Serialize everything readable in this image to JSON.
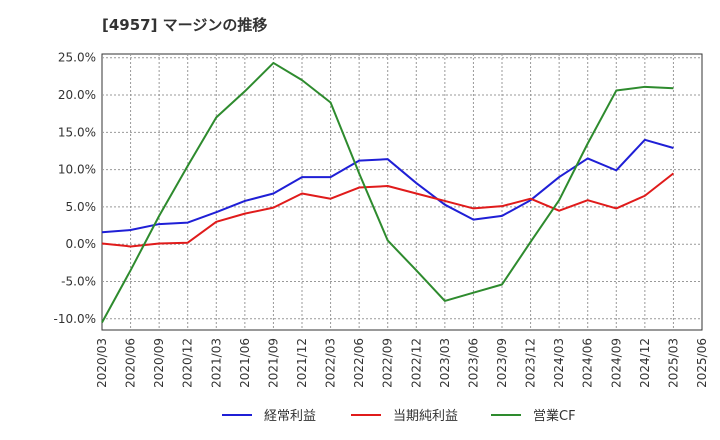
{
  "chart_data": {
    "type": "line",
    "title": "[4957]  マージンの推移",
    "xlabel": "",
    "ylabel": "",
    "ylim": [
      -11.5,
      25.5
    ],
    "y_ticks": [
      25,
      20,
      15,
      10,
      5,
      0,
      -5,
      -10
    ],
    "y_tick_labels": [
      "25.0%",
      "20.0%",
      "15.0%",
      "10.0%",
      "5.0%",
      "0.0%",
      "-5.0%",
      "-10.0%"
    ],
    "categories": [
      "2020/03",
      "2020/06",
      "2020/09",
      "2020/12",
      "2021/03",
      "2021/06",
      "2021/09",
      "2021/12",
      "2022/03",
      "2022/06",
      "2022/09",
      "2022/12",
      "2023/03",
      "2023/06",
      "2023/09",
      "2023/12",
      "2024/03",
      "2024/06",
      "2024/09",
      "2024/12",
      "2025/03",
      "2025/06"
    ],
    "grid": true,
    "legend_position": "bottom",
    "series": [
      {
        "name": "経常利益",
        "color": "#1f1fd6",
        "values": [
          1.6,
          1.9,
          2.7,
          2.9,
          4.3,
          5.8,
          6.8,
          9.0,
          9.0,
          11.2,
          11.4,
          8.2,
          5.3,
          3.3,
          3.8,
          5.9,
          9.0,
          11.5,
          9.9,
          14.0,
          12.9,
          null
        ]
      },
      {
        "name": "当期純利益",
        "color": "#e01b1b",
        "values": [
          0.1,
          -0.3,
          0.1,
          0.2,
          3.0,
          4.1,
          4.9,
          6.8,
          6.1,
          7.6,
          7.8,
          6.8,
          5.8,
          4.8,
          5.1,
          6.1,
          4.5,
          5.9,
          4.8,
          6.5,
          9.5,
          null
        ]
      },
      {
        "name": "営業CF",
        "color": "#2e8b2e",
        "values": [
          -10.5,
          -3.5,
          3.8,
          10.5,
          17.0,
          20.5,
          24.3,
          22.0,
          19.0,
          9.5,
          0.5,
          -3.5,
          -7.6,
          -6.5,
          -5.4,
          0.3,
          5.9,
          13.5,
          20.6,
          21.1,
          20.9,
          null
        ]
      }
    ]
  }
}
